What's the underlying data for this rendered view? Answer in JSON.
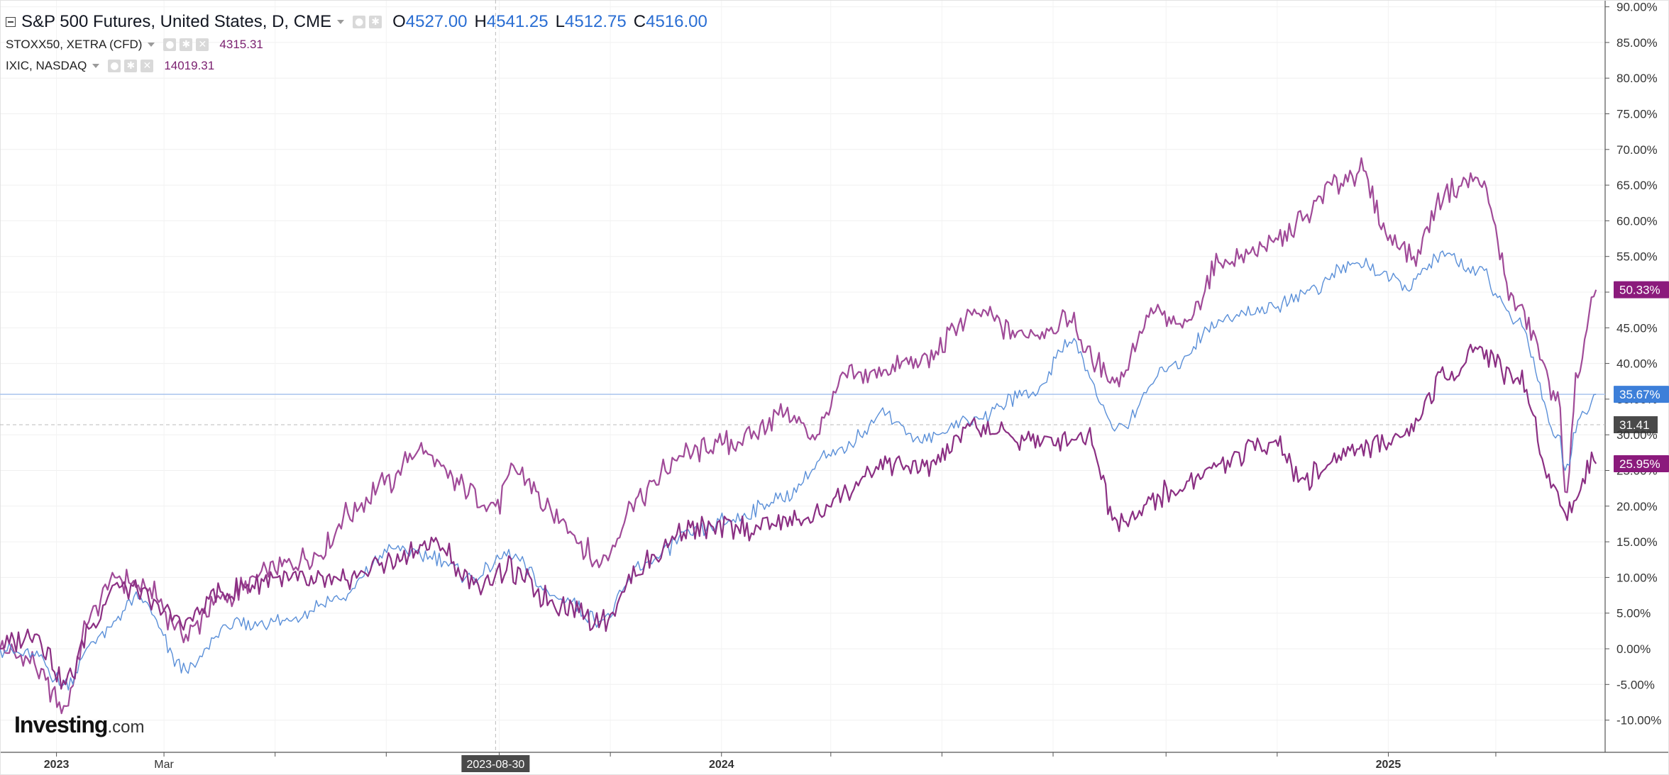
{
  "legend": {
    "main_title": "S&P 500 Futures, United States, D, CME",
    "ohlc": {
      "o_label": "O",
      "o_value": "4527.00",
      "h_label": "H",
      "h_value": "4541.25",
      "l_label": "L",
      "l_value": "4512.75",
      "c_label": "C",
      "c_value": "4516.00"
    },
    "series2_title": "STOXX50, XETRA (CFD)",
    "series2_value": "4315.31",
    "series3_title": "IXIC, NASDAQ",
    "series3_value": "14019.31"
  },
  "logo": {
    "text": "Investing",
    "suffix": ".com"
  },
  "chart_data": {
    "type": "line",
    "y_unit": "%",
    "ylim": [
      -12,
      91
    ],
    "yticks": [
      "90.00%",
      "85.00%",
      "80.00%",
      "75.00%",
      "70.00%",
      "65.00%",
      "60.00%",
      "55.00%",
      "50.00%",
      "45.00%",
      "40.00%",
      "35.00%",
      "30.00%",
      "25.00%",
      "20.00%",
      "15.00%",
      "10.00%",
      "5.00%",
      "0.00%",
      "-5.00%",
      "-10.00%"
    ],
    "ytick_values": [
      90,
      85,
      80,
      75,
      70,
      65,
      60,
      55,
      50,
      45,
      40,
      35,
      30,
      25,
      20,
      15,
      10,
      5,
      0,
      -5,
      -10
    ],
    "xlim": [
      "2022-12-01",
      "2025-04-30"
    ],
    "xticks": [
      {
        "label": "2023",
        "date": "2023-01-01",
        "bold": true
      },
      {
        "label": "Mar",
        "date": "2023-03-01",
        "bold": false
      },
      {
        "label": "2024",
        "date": "2024-01-01",
        "bold": true
      },
      {
        "label": "2025",
        "date": "2025-01-01",
        "bold": true
      }
    ],
    "crosshair": {
      "date": "2023-08-30",
      "label": "2023-08-30",
      "y_value": 31.41,
      "y_label": "31.41"
    },
    "grid": true,
    "last_value_labels": [
      {
        "value": 50.33,
        "label": "50.33%",
        "color": "#8b1a7c"
      },
      {
        "value": 35.67,
        "label": "35.67%",
        "color": "#3d7fd9"
      },
      {
        "value": 25.95,
        "label": "25.95%",
        "color": "#8b1a7c"
      }
    ],
    "series": [
      {
        "color": "#a04a98",
        "points": [
          [
            "2022-12-01",
            0
          ],
          [
            "2022-12-15",
            -1
          ],
          [
            "2023-01-05",
            -8
          ],
          [
            "2023-01-20",
            5
          ],
          [
            "2023-02-02",
            10
          ],
          [
            "2023-02-20",
            8
          ],
          [
            "2023-03-13",
            2
          ],
          [
            "2023-04-01",
            7
          ],
          [
            "2023-05-01",
            11
          ],
          [
            "2023-05-25",
            13
          ],
          [
            "2023-06-10",
            19
          ],
          [
            "2023-06-30",
            23
          ],
          [
            "2023-07-19",
            28
          ],
          [
            "2023-08-10",
            23
          ],
          [
            "2023-08-30",
            20
          ],
          [
            "2023-09-10",
            25
          ],
          [
            "2023-10-05",
            18
          ],
          [
            "2023-10-27",
            12
          ],
          [
            "2023-11-15",
            21
          ],
          [
            "2023-12-10",
            27
          ],
          [
            "2024-01-10",
            29
          ],
          [
            "2024-02-05",
            33
          ],
          [
            "2024-02-20",
            30
          ],
          [
            "2024-03-10",
            38
          ],
          [
            "2024-04-19",
            40
          ],
          [
            "2024-05-20",
            47
          ],
          [
            "2024-06-15",
            44
          ],
          [
            "2024-07-10",
            46
          ],
          [
            "2024-07-25",
            40
          ],
          [
            "2024-08-05",
            38
          ],
          [
            "2024-08-25",
            47
          ],
          [
            "2024-09-10",
            45
          ],
          [
            "2024-10-01",
            54
          ],
          [
            "2024-10-30",
            57
          ],
          [
            "2024-11-15",
            60
          ],
          [
            "2024-12-01",
            65
          ],
          [
            "2024-12-16",
            67
          ],
          [
            "2025-01-02",
            58
          ],
          [
            "2025-01-15",
            55
          ],
          [
            "2025-02-01",
            64
          ],
          [
            "2025-02-19",
            66
          ],
          [
            "2025-03-13",
            48
          ],
          [
            "2025-04-04",
            36
          ],
          [
            "2025-04-08",
            22
          ],
          [
            "2025-04-15",
            38
          ],
          [
            "2025-04-25",
            50.33
          ]
        ]
      },
      {
        "color": "#5a8fd8",
        "points": [
          [
            "2022-12-01",
            0
          ],
          [
            "2022-12-20",
            -1
          ],
          [
            "2023-01-05",
            -5
          ],
          [
            "2023-01-25",
            2
          ],
          [
            "2023-02-15",
            7
          ],
          [
            "2023-03-13",
            -3
          ],
          [
            "2023-04-05",
            3
          ],
          [
            "2023-05-05",
            4
          ],
          [
            "2023-06-05",
            7
          ],
          [
            "2023-07-05",
            14
          ],
          [
            "2023-07-25",
            13
          ],
          [
            "2023-08-18",
            10
          ],
          [
            "2023-09-05",
            13
          ],
          [
            "2023-10-05",
            7
          ],
          [
            "2023-10-27",
            4
          ],
          [
            "2023-11-20",
            12
          ],
          [
            "2023-12-15",
            16
          ],
          [
            "2024-01-05",
            18
          ],
          [
            "2024-02-01",
            21
          ],
          [
            "2024-03-01",
            27
          ],
          [
            "2024-04-01",
            33
          ],
          [
            "2024-04-19",
            29
          ],
          [
            "2024-05-15",
            32
          ],
          [
            "2024-06-20",
            36
          ],
          [
            "2024-07-10",
            43
          ],
          [
            "2024-08-05",
            31
          ],
          [
            "2024-09-05",
            40
          ],
          [
            "2024-10-01",
            46
          ],
          [
            "2024-10-30",
            48
          ],
          [
            "2024-11-15",
            50
          ],
          [
            "2024-12-16",
            54
          ],
          [
            "2025-01-10",
            51
          ],
          [
            "2025-02-01",
            55
          ],
          [
            "2025-02-19",
            53
          ],
          [
            "2025-03-13",
            46
          ],
          [
            "2025-04-04",
            30
          ],
          [
            "2025-04-08",
            25
          ],
          [
            "2025-04-15",
            32
          ],
          [
            "2025-04-25",
            35.67
          ]
        ]
      },
      {
        "color": "#8b2f83",
        "points": [
          [
            "2022-12-01",
            0
          ],
          [
            "2022-12-20",
            2
          ],
          [
            "2023-01-06",
            -5
          ],
          [
            "2023-01-20",
            3
          ],
          [
            "2023-02-02",
            9
          ],
          [
            "2023-03-13",
            4
          ],
          [
            "2023-04-01",
            8
          ],
          [
            "2023-05-01",
            10
          ],
          [
            "2023-06-01",
            9
          ],
          [
            "2023-07-01",
            12
          ],
          [
            "2023-07-27",
            15
          ],
          [
            "2023-08-18",
            9
          ],
          [
            "2023-09-05",
            11
          ],
          [
            "2023-10-05",
            6
          ],
          [
            "2023-10-27",
            4
          ],
          [
            "2023-11-20",
            12
          ],
          [
            "2023-12-15",
            17
          ],
          [
            "2024-01-10",
            17
          ],
          [
            "2024-02-15",
            18
          ],
          [
            "2024-03-10",
            22
          ],
          [
            "2024-04-01",
            26
          ],
          [
            "2024-04-19",
            25
          ],
          [
            "2024-05-20",
            31
          ],
          [
            "2024-06-25",
            29
          ],
          [
            "2024-07-20",
            30
          ],
          [
            "2024-08-05",
            18
          ],
          [
            "2024-09-05",
            22
          ],
          [
            "2024-10-01",
            26
          ],
          [
            "2024-10-30",
            29
          ],
          [
            "2024-11-15",
            24
          ],
          [
            "2024-12-16",
            28
          ],
          [
            "2025-01-10",
            30
          ],
          [
            "2025-02-01",
            38
          ],
          [
            "2025-02-19",
            42
          ],
          [
            "2025-03-13",
            38
          ],
          [
            "2025-04-04",
            22
          ],
          [
            "2025-04-08",
            19
          ],
          [
            "2025-04-25",
            25.95
          ]
        ]
      }
    ]
  }
}
